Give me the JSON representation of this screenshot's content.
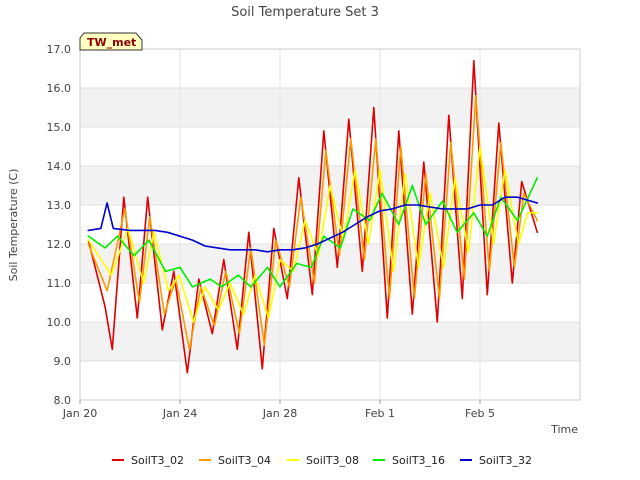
{
  "chart_data": {
    "type": "line",
    "title": "Soil Temperature Set 3",
    "xlabel": "Time",
    "ylabel": "Soil Temperature (C)",
    "ylim": [
      8.0,
      17.0
    ],
    "xlim": [
      "2024-01-20",
      "2024-02-09"
    ],
    "y_ticks": [
      "8.0",
      "9.0",
      "10.0",
      "11.0",
      "12.0",
      "13.0",
      "14.0",
      "15.0",
      "16.0",
      "17.0"
    ],
    "x_ticks": [
      {
        "date": "2024-01-20",
        "label": "Jan 20"
      },
      {
        "date": "2024-01-24",
        "label": "Jan 24"
      },
      {
        "date": "2024-01-28",
        "label": "Jan 28"
      },
      {
        "date": "2024-02-01",
        "label": "Feb 1"
      },
      {
        "date": "2024-02-05",
        "label": "Feb 5"
      }
    ],
    "grid": true,
    "legend_position": "bottom",
    "badge": "TW_met",
    "series": [
      {
        "name": "SoilT3_02",
        "color": "#dd0000",
        "x": [
          "2024-01-20 08:00",
          "2024-01-21 00:00",
          "2024-01-21 07:00",
          "2024-01-21 18:00",
          "2024-01-22 07:00",
          "2024-01-22 17:00",
          "2024-01-23 07:00",
          "2024-01-23 18:00",
          "2024-01-24 07:00",
          "2024-01-24 18:00",
          "2024-01-25 07:00",
          "2024-01-25 18:00",
          "2024-01-26 07:00",
          "2024-01-26 18:00",
          "2024-01-27 07:00",
          "2024-01-27 18:00",
          "2024-01-28 07:00",
          "2024-01-28 18:00",
          "2024-01-29 07:00",
          "2024-01-29 18:00",
          "2024-01-30 07:00",
          "2024-01-30 18:00",
          "2024-01-31 07:00",
          "2024-01-31 18:00",
          "2024-02-01 07:00",
          "2024-02-01 18:00",
          "2024-02-02 07:00",
          "2024-02-02 18:00",
          "2024-02-03 07:00",
          "2024-02-03 18:00",
          "2024-02-04 07:00",
          "2024-02-04 18:00",
          "2024-02-05 07:00",
          "2024-02-05 18:00",
          "2024-02-06 07:00",
          "2024-02-06 16:00",
          "2024-02-07 07:00"
        ],
        "y": [
          12.1,
          10.4,
          9.3,
          13.2,
          10.1,
          13.2,
          9.8,
          11.3,
          8.7,
          11.1,
          9.7,
          11.6,
          9.3,
          12.3,
          8.8,
          12.4,
          10.6,
          13.7,
          10.7,
          14.9,
          11.4,
          15.2,
          11.3,
          15.5,
          10.1,
          14.9,
          10.2,
          14.1,
          10.0,
          15.3,
          10.6,
          16.7,
          10.7,
          15.1,
          11.0,
          13.6,
          12.3
        ]
      },
      {
        "name": "SoilT3_04",
        "color": "#ff9900",
        "x": [
          "2024-01-20 08:00",
          "2024-01-21 02:00",
          "2024-01-21 19:00",
          "2024-01-22 09:00",
          "2024-01-22 19:00",
          "2024-01-23 09:00",
          "2024-01-23 20:00",
          "2024-01-24 09:00",
          "2024-01-24 20:00",
          "2024-01-25 09:00",
          "2024-01-25 20:00",
          "2024-01-26 09:00",
          "2024-01-26 20:00",
          "2024-01-27 09:00",
          "2024-01-27 20:00",
          "2024-01-28 09:00",
          "2024-01-28 20:00",
          "2024-01-29 09:00",
          "2024-01-29 20:00",
          "2024-01-30 09:00",
          "2024-01-30 20:00",
          "2024-01-31 09:00",
          "2024-01-31 20:00",
          "2024-02-01 09:00",
          "2024-02-01 20:00",
          "2024-02-02 09:00",
          "2024-02-02 20:00",
          "2024-02-03 09:00",
          "2024-02-03 20:00",
          "2024-02-04 09:00",
          "2024-02-04 20:00",
          "2024-02-05 09:00",
          "2024-02-05 20:00",
          "2024-02-06 09:00",
          "2024-02-06 18:00",
          "2024-02-07 07:00"
        ],
        "y": [
          12.0,
          10.8,
          12.9,
          10.5,
          12.7,
          10.2,
          11.1,
          9.3,
          10.9,
          9.9,
          11.3,
          9.7,
          11.9,
          9.4,
          12.1,
          10.9,
          13.2,
          11.0,
          14.4,
          11.7,
          14.7,
          11.6,
          14.7,
          10.6,
          14.5,
          10.6,
          13.8,
          10.6,
          14.6,
          11.1,
          15.8,
          11.3,
          14.6,
          11.4,
          13.3,
          12.6
        ]
      },
      {
        "name": "SoilT3_08",
        "color": "#ffff00",
        "x": [
          "2024-01-20 08:00",
          "2024-01-21 06:00",
          "2024-01-21 22:00",
          "2024-01-22 13:00",
          "2024-01-22 23:00",
          "2024-01-23 13:00",
          "2024-01-23 23:00",
          "2024-01-24 13:00",
          "2024-01-25 00:00",
          "2024-01-25 13:00",
          "2024-01-26 00:00",
          "2024-01-26 13:00",
          "2024-01-27 00:00",
          "2024-01-27 13:00",
          "2024-01-28 00:00",
          "2024-01-28 13:00",
          "2024-01-29 00:00",
          "2024-01-29 13:00",
          "2024-01-30 00:00",
          "2024-01-30 13:00",
          "2024-01-31 00:00",
          "2024-01-31 13:00",
          "2024-02-01 00:00",
          "2024-02-01 13:00",
          "2024-02-02 00:00",
          "2024-02-02 13:00",
          "2024-02-03 00:00",
          "2024-02-03 13:00",
          "2024-02-04 00:00",
          "2024-02-04 13:00",
          "2024-02-05 00:00",
          "2024-02-05 13:00",
          "2024-02-06 00:00",
          "2024-02-06 13:00",
          "2024-02-06 22:00",
          "2024-02-07 07:00"
        ],
        "y": [
          12.1,
          11.2,
          12.4,
          11.0,
          12.3,
          10.8,
          11.2,
          10.0,
          10.9,
          10.3,
          11.0,
          10.2,
          11.2,
          10.1,
          11.6,
          11.3,
          12.6,
          11.7,
          13.5,
          12.1,
          13.9,
          12.0,
          13.9,
          11.3,
          13.8,
          11.4,
          13.3,
          11.4,
          13.7,
          11.8,
          14.5,
          12.0,
          13.9,
          12.0,
          12.8,
          12.8
        ]
      },
      {
        "name": "SoilT3_16",
        "color": "#00ee00",
        "x": [
          "2024-01-20 08:00",
          "2024-01-21 00:00",
          "2024-01-21 12:00",
          "2024-01-22 04:00",
          "2024-01-22 18:00",
          "2024-01-23 10:00",
          "2024-01-24 00:00",
          "2024-01-24 12:00",
          "2024-01-25 05:00",
          "2024-01-25 16:00",
          "2024-01-26 08:00",
          "2024-01-26 20:00",
          "2024-01-27 12:00",
          "2024-01-28 00:00",
          "2024-01-28 16:00",
          "2024-01-29 06:00",
          "2024-01-29 18:00",
          "2024-01-30 10:00",
          "2024-01-30 22:00",
          "2024-01-31 14:00",
          "2024-02-01 02:00",
          "2024-02-01 18:00",
          "2024-02-02 07:00",
          "2024-02-02 20:00",
          "2024-02-03 12:00",
          "2024-02-04 02:00",
          "2024-02-04 18:00",
          "2024-02-05 07:00",
          "2024-02-05 20:00",
          "2024-02-06 12:00",
          "2024-02-07 07:00"
        ],
        "y": [
          12.2,
          11.9,
          12.2,
          11.7,
          12.1,
          11.3,
          11.4,
          10.9,
          11.1,
          10.9,
          11.2,
          10.9,
          11.4,
          10.9,
          11.5,
          11.4,
          12.2,
          11.9,
          12.9,
          12.6,
          13.3,
          12.5,
          13.5,
          12.5,
          13.1,
          12.3,
          12.8,
          12.2,
          13.2,
          12.6,
          13.7
        ]
      },
      {
        "name": "SoilT3_32",
        "color": "#0000cc",
        "x": [
          "2024-01-20 08:00",
          "2024-01-20 20:00",
          "2024-01-21 02:00",
          "2024-01-21 08:00",
          "2024-01-22 00:00",
          "2024-01-22 12:00",
          "2024-01-23 00:00",
          "2024-01-23 12:00",
          "2024-01-24 00:00",
          "2024-01-24 12:00",
          "2024-01-25 00:00",
          "2024-01-25 12:00",
          "2024-01-26 00:00",
          "2024-01-26 12:00",
          "2024-01-27 00:00",
          "2024-01-27 12:00",
          "2024-01-28 00:00",
          "2024-01-28 12:00",
          "2024-01-29 00:00",
          "2024-01-29 12:00",
          "2024-01-30 00:00",
          "2024-01-30 12:00",
          "2024-01-31 00:00",
          "2024-01-31 12:00",
          "2024-02-01 00:00",
          "2024-02-01 12:00",
          "2024-02-02 00:00",
          "2024-02-02 12:00",
          "2024-02-03 00:00",
          "2024-02-03 12:00",
          "2024-02-04 00:00",
          "2024-02-04 12:00",
          "2024-02-05 00:00",
          "2024-02-05 12:00",
          "2024-02-06 00:00",
          "2024-02-06 12:00",
          "2024-02-07 07:00"
        ],
        "y": [
          12.35,
          12.4,
          13.05,
          12.4,
          12.35,
          12.35,
          12.35,
          12.3,
          12.2,
          12.1,
          11.95,
          11.9,
          11.85,
          11.85,
          11.85,
          11.8,
          11.85,
          11.85,
          11.9,
          12.0,
          12.15,
          12.3,
          12.5,
          12.7,
          12.85,
          12.9,
          13.0,
          13.0,
          12.95,
          12.9,
          12.9,
          12.9,
          13.0,
          13.0,
          13.2,
          13.2,
          13.05
        ]
      }
    ]
  }
}
